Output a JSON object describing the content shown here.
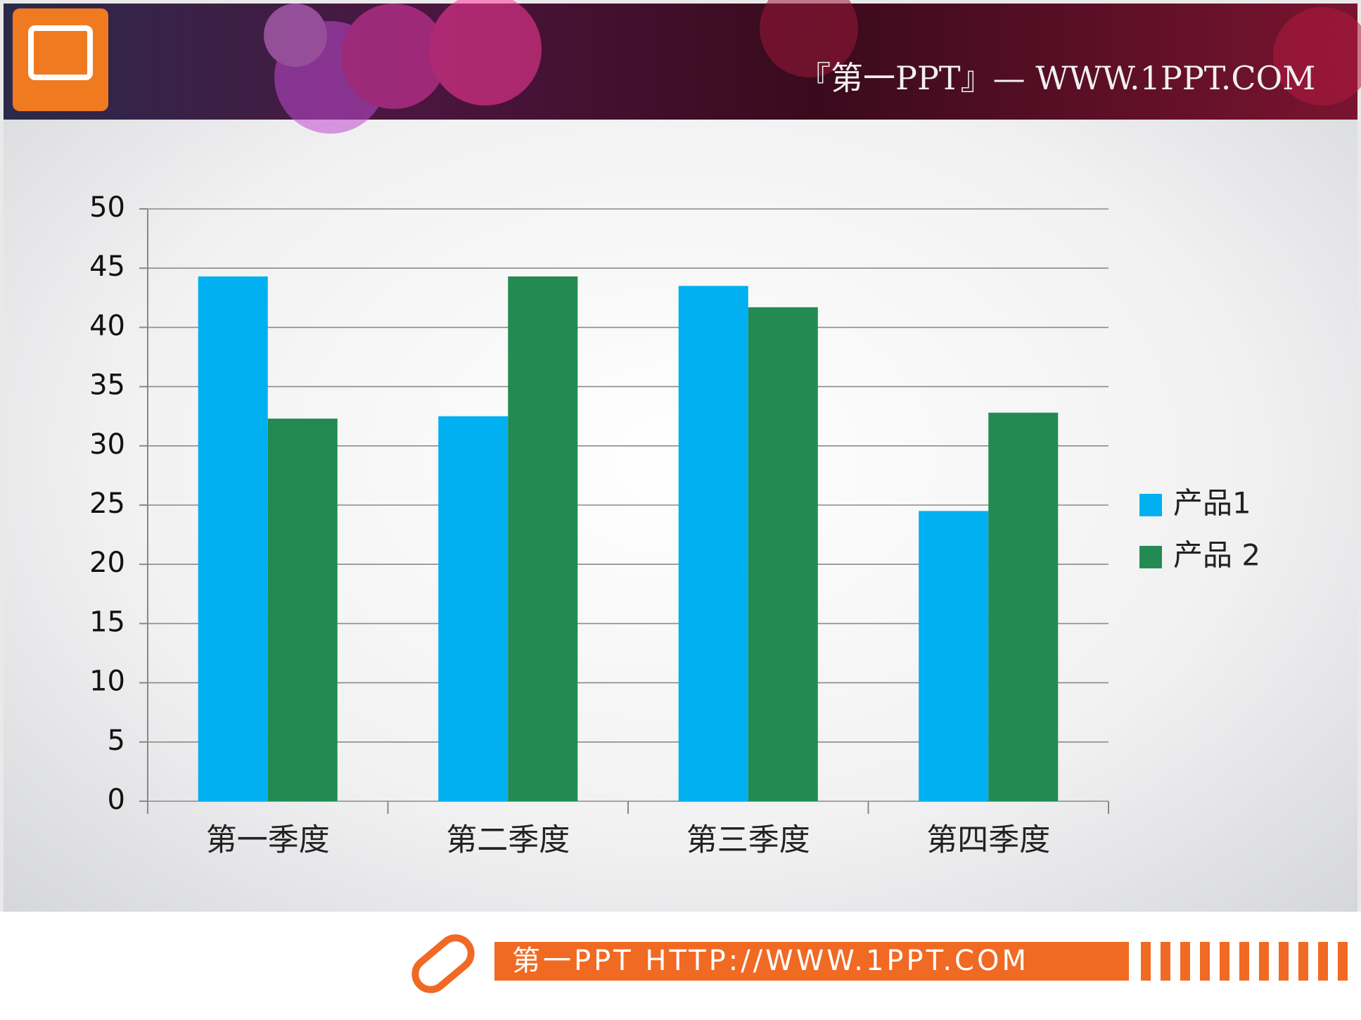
{
  "header": {
    "text": "『第一PPT』— WWW.1PPT.COM"
  },
  "footer": {
    "text": "第一PPT HTTP://WWW.1PPT.COM"
  },
  "chart_data": {
    "type": "bar",
    "categories": [
      "第一季度",
      "第二季度",
      "第三季度",
      "第四季度"
    ],
    "series": [
      {
        "name": "产品1",
        "color": "#00b0f0",
        "values": [
          44.3,
          32.5,
          43.5,
          24.5
        ]
      },
      {
        "name": "产品 2",
        "color": "#238b52",
        "values": [
          32.3,
          44.3,
          41.7,
          32.8
        ]
      }
    ],
    "ylim": [
      0,
      50
    ],
    "yticks": [
      0,
      5,
      10,
      15,
      20,
      25,
      30,
      35,
      40,
      45,
      50
    ],
    "grid": true,
    "legend": "right"
  }
}
